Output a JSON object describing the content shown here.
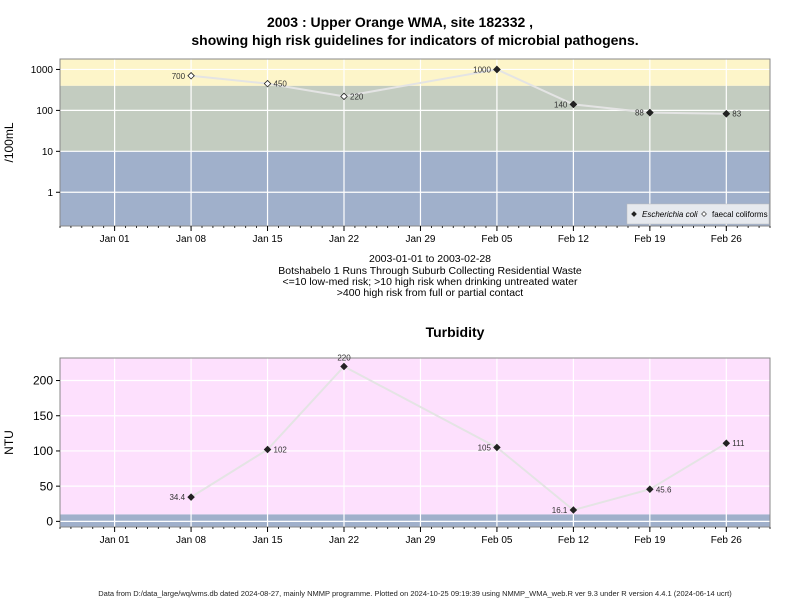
{
  "header": {
    "title_line1": "2003 : Upper Orange WMA, site 182332 ,",
    "title_line2": "showing high risk guidelines for indicators of microbial pathogens."
  },
  "caption": {
    "date_range": "2003-01-01 to 2003-02-28",
    "site_desc": "Botshabelo 1 Runs Through Suburb Collecting Residential Waste",
    "risk1": "<=10 low-med risk; >10 high risk when drinking untreated water",
    "risk2": ">400 high risk from full or partial contact"
  },
  "turbidity_title": "Turbidity",
  "footer": "Data from D:/data_large/wq/wms.db dated 2024-08-27, mainly NMMP programme. Plotted on 2024-10-25 09:19:39 using NMMP_WMA_web.R ver 9.3 under R version 4.4.1 (2024-06-14 ucrt)",
  "colors": {
    "band_high": "#fdf5c9",
    "band_mid": "#c3ccc0",
    "band_low": "#a0b0cb",
    "turb_bg": "#fde0fd",
    "series_line": "#e4e4e4",
    "point": "#222222"
  },
  "chart_data": [
    {
      "type": "line",
      "name": "microbial",
      "ylabel": "/100mL",
      "yscale": "log",
      "ylim": [
        0.15,
        1800
      ],
      "yticks": [
        1,
        10,
        100,
        1000
      ],
      "ytick_labels": [
        "1",
        "10",
        "100",
        "1000"
      ],
      "xlim": [
        "2002-12-27",
        "2003-03-02"
      ],
      "xticks": [
        "2003-01-01",
        "2003-01-08",
        "2003-01-15",
        "2003-01-22",
        "2003-01-29",
        "2003-02-05",
        "2003-02-12",
        "2003-02-19",
        "2003-02-26"
      ],
      "xtick_labels": [
        "Jan 01",
        "Jan 08",
        "Jan 15",
        "Jan 22",
        "Jan 29",
        "Feb 05",
        "Feb 12",
        "Feb 19",
        "Feb 26"
      ],
      "bands": [
        {
          "from": 0.15,
          "to": 10,
          "color": "#a0b0cb"
        },
        {
          "from": 10,
          "to": 400,
          "color": "#c3ccc0"
        },
        {
          "from": 400,
          "to": 1800,
          "color": "#fdf5c9"
        }
      ],
      "legend_position": "bottom-right",
      "grid": true,
      "series": [
        {
          "name": "faecal coliforms",
          "marker": "open-diamond",
          "points": [
            {
              "x": "2003-01-08",
              "y": 700,
              "label": "700",
              "label_side": "left"
            },
            {
              "x": "2003-01-15",
              "y": 450,
              "label": "450",
              "label_side": "right"
            },
            {
              "x": "2003-01-22",
              "y": 220,
              "label": "220",
              "label_side": "right"
            },
            {
              "x": "2003-02-05",
              "y": 1000,
              "label": "1000",
              "label_side": "left"
            },
            {
              "x": "2003-02-12",
              "y": 140,
              "label": "140",
              "label_side": "left"
            },
            {
              "x": "2003-02-19",
              "y": 88,
              "label": "88",
              "label_side": "left"
            },
            {
              "x": "2003-02-26",
              "y": 83,
              "label": "83",
              "label_side": "right"
            }
          ]
        },
        {
          "name": "Escherichia coli",
          "marker": "filled-diamond",
          "points": [
            {
              "x": "2003-02-05",
              "y": 1000
            },
            {
              "x": "2003-02-12",
              "y": 140
            },
            {
              "x": "2003-02-19",
              "y": 88
            },
            {
              "x": "2003-02-26",
              "y": 83
            }
          ]
        }
      ]
    },
    {
      "type": "line",
      "name": "turbidity",
      "ylabel": "NTU",
      "ylim": [
        -8,
        232
      ],
      "yticks": [
        0,
        50,
        100,
        150,
        200
      ],
      "ytick_labels": [
        "0",
        "50",
        "100",
        "150",
        "200"
      ],
      "xlim": [
        "2002-12-27",
        "2003-03-02"
      ],
      "xticks": [
        "2003-01-01",
        "2003-01-08",
        "2003-01-15",
        "2003-01-22",
        "2003-01-29",
        "2003-02-05",
        "2003-02-12",
        "2003-02-19",
        "2003-02-26"
      ],
      "xtick_labels": [
        "Jan 01",
        "Jan 08",
        "Jan 15",
        "Jan 22",
        "Jan 29",
        "Feb 05",
        "Feb 12",
        "Feb 19",
        "Feb 26"
      ],
      "bands": [
        {
          "from": -8,
          "to": 10,
          "color": "#a0b0cb"
        },
        {
          "from": 10,
          "to": 232,
          "color": "#fde0fd"
        }
      ],
      "grid": true,
      "series": [
        {
          "marker": "filled-diamond",
          "points": [
            {
              "x": "2003-01-08",
              "y": 34.4,
              "label": "34.4",
              "label_side": "left"
            },
            {
              "x": "2003-01-15",
              "y": 102,
              "label": "102",
              "label_side": "right"
            },
            {
              "x": "2003-01-22",
              "y": 220,
              "label": "220",
              "label_side": "above"
            },
            {
              "x": "2003-02-05",
              "y": 105,
              "label": "105",
              "label_side": "left"
            },
            {
              "x": "2003-02-12",
              "y": 16.1,
              "label": "16.1",
              "label_side": "left"
            },
            {
              "x": "2003-02-19",
              "y": 45.6,
              "label": "45.6",
              "label_side": "right"
            },
            {
              "x": "2003-02-26",
              "y": 111,
              "label": "111",
              "label_side": "right"
            }
          ]
        }
      ]
    }
  ]
}
